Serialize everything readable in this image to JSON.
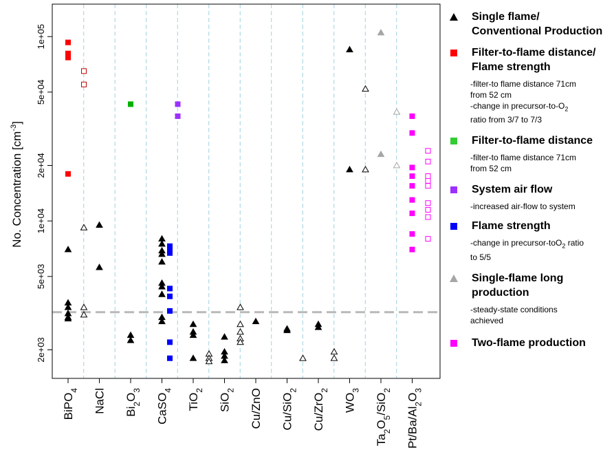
{
  "chart_data": {
    "type": "scatter",
    "title": "",
    "xlabel": "",
    "ylabel": "No. Concentration [cm",
    "ylabel_sup": "-3",
    "ylabel_close": "]",
    "y_scale": "log",
    "ylim": [
      1400,
      150000
    ],
    "grid": "vertical dashed lines between material groups",
    "reference_line": {
      "y": 3200,
      "style": "dashed gray"
    },
    "y_ticks": [
      {
        "value": 2000,
        "label": "2e+03"
      },
      {
        "value": 5000,
        "label": "5e+03"
      },
      {
        "value": 10000,
        "label": "1e+04"
      },
      {
        "value": 20000,
        "label": "2e+04"
      },
      {
        "value": 50000,
        "label": "5e+04"
      },
      {
        "value": 100000,
        "label": "1e+05"
      }
    ],
    "categories": [
      {
        "parts": [
          [
            "BiPO",
            ""
          ],
          [
            "4",
            "sub"
          ]
        ]
      },
      {
        "parts": [
          [
            "NaCl",
            ""
          ]
        ]
      },
      {
        "parts": [
          [
            "Bi",
            ""
          ],
          [
            "2",
            "sub"
          ],
          [
            "O",
            ""
          ],
          [
            "3",
            "sub"
          ]
        ]
      },
      {
        "parts": [
          [
            "CaSO",
            ""
          ],
          [
            "4",
            "sub"
          ]
        ]
      },
      {
        "parts": [
          [
            "TiO",
            ""
          ],
          [
            "2",
            "sub"
          ]
        ]
      },
      {
        "parts": [
          [
            "SiO",
            ""
          ],
          [
            "2",
            "sub"
          ]
        ]
      },
      {
        "parts": [
          [
            "Cu/ZnO",
            ""
          ]
        ]
      },
      {
        "parts": [
          [
            "Cu/SiO",
            ""
          ],
          [
            "2",
            "sub"
          ]
        ]
      },
      {
        "parts": [
          [
            "Cu/ZrO",
            ""
          ],
          [
            "2",
            "sub"
          ]
        ]
      },
      {
        "parts": [
          [
            "WO",
            ""
          ],
          [
            "3",
            "sub"
          ]
        ]
      },
      {
        "parts": [
          [
            "Ta",
            ""
          ],
          [
            "2",
            "sub"
          ],
          [
            "O",
            ""
          ],
          [
            "5",
            "sub"
          ],
          [
            "/SiO",
            ""
          ],
          [
            "2",
            "sub"
          ]
        ]
      },
      {
        "parts": [
          [
            "Pt/Ba/Al",
            ""
          ],
          [
            "2",
            "sub"
          ],
          [
            "O",
            ""
          ],
          [
            "3",
            "sub"
          ]
        ]
      }
    ],
    "series": [
      {
        "marker": "triangle",
        "color": "#000000",
        "points": [
          {
            "cat": 0,
            "x_offset": 0.0,
            "filled": true,
            "y": 7000
          },
          {
            "cat": 0,
            "x_offset": 0.0,
            "filled": true,
            "y": 3600
          },
          {
            "cat": 0,
            "x_offset": 0.0,
            "filled": true,
            "y": 3400
          },
          {
            "cat": 0,
            "x_offset": 0.0,
            "filled": true,
            "y": 3150
          },
          {
            "cat": 0,
            "x_offset": 0.0,
            "filled": true,
            "y": 3000
          },
          {
            "cat": 0,
            "x_offset": 0.0,
            "filled": true,
            "y": 2950
          },
          {
            "cat": 0,
            "x_offset": 0.5,
            "filled": false,
            "y": 9200
          },
          {
            "cat": 0,
            "x_offset": 0.5,
            "filled": false,
            "y": 3400
          },
          {
            "cat": 0,
            "x_offset": 0.5,
            "filled": false,
            "y": 3100
          },
          {
            "cat": 1,
            "x_offset": 0.0,
            "filled": true,
            "y": 9500
          },
          {
            "cat": 1,
            "x_offset": 0.0,
            "filled": true,
            "y": 5600
          },
          {
            "cat": 2,
            "x_offset": 0.0,
            "filled": true,
            "y": 2400
          },
          {
            "cat": 2,
            "x_offset": 0.0,
            "filled": true,
            "y": 2250
          },
          {
            "cat": 3,
            "x_offset": 0.0,
            "filled": true,
            "y": 8000
          },
          {
            "cat": 3,
            "x_offset": 0.0,
            "filled": true,
            "y": 7500
          },
          {
            "cat": 3,
            "x_offset": 0.0,
            "filled": true,
            "y": 6900
          },
          {
            "cat": 3,
            "x_offset": 0.0,
            "filled": true,
            "y": 6600
          },
          {
            "cat": 3,
            "x_offset": 0.0,
            "filled": true,
            "y": 6000
          },
          {
            "cat": 3,
            "x_offset": 0.0,
            "filled": true,
            "y": 4600
          },
          {
            "cat": 3,
            "x_offset": 0.0,
            "filled": true,
            "y": 4400
          },
          {
            "cat": 3,
            "x_offset": 0.0,
            "filled": true,
            "y": 4000
          },
          {
            "cat": 3,
            "x_offset": 0.0,
            "filled": true,
            "y": 3000
          },
          {
            "cat": 3,
            "x_offset": 0.0,
            "filled": true,
            "y": 2850
          },
          {
            "cat": 4,
            "x_offset": 0.0,
            "filled": true,
            "y": 2750
          },
          {
            "cat": 4,
            "x_offset": 0.0,
            "filled": true,
            "y": 2500
          },
          {
            "cat": 4,
            "x_offset": 0.0,
            "filled": true,
            "y": 2400
          },
          {
            "cat": 4,
            "x_offset": 0.0,
            "filled": true,
            "y": 1800
          },
          {
            "cat": 4,
            "x_offset": 0.5,
            "filled": false,
            "y": 1900
          },
          {
            "cat": 4,
            "x_offset": 0.5,
            "filled": false,
            "y": 1800
          },
          {
            "cat": 4,
            "x_offset": 0.5,
            "filled": false,
            "y": 1730
          },
          {
            "cat": 5,
            "x_offset": 0.0,
            "filled": true,
            "y": 2350
          },
          {
            "cat": 5,
            "x_offset": 0.0,
            "filled": true,
            "y": 1950
          },
          {
            "cat": 5,
            "x_offset": 0.0,
            "filled": true,
            "y": 1850
          },
          {
            "cat": 5,
            "x_offset": 0.0,
            "filled": true,
            "y": 1750
          },
          {
            "cat": 5,
            "x_offset": 0.5,
            "filled": false,
            "y": 3400
          },
          {
            "cat": 5,
            "x_offset": 0.5,
            "filled": false,
            "y": 2750
          },
          {
            "cat": 5,
            "x_offset": 0.5,
            "filled": false,
            "y": 2500
          },
          {
            "cat": 5,
            "x_offset": 0.5,
            "filled": false,
            "y": 2300
          },
          {
            "cat": 5,
            "x_offset": 0.5,
            "filled": false,
            "y": 2200
          },
          {
            "cat": 6,
            "x_offset": 0.0,
            "filled": true,
            "y": 2850
          },
          {
            "cat": 7,
            "x_offset": 0.0,
            "filled": true,
            "y": 2600
          },
          {
            "cat": 7,
            "x_offset": 0.0,
            "filled": true,
            "y": 2550
          },
          {
            "cat": 7,
            "x_offset": 0.5,
            "filled": false,
            "y": 1800
          },
          {
            "cat": 8,
            "x_offset": 0.0,
            "filled": true,
            "y": 2750
          },
          {
            "cat": 8,
            "x_offset": 0.0,
            "filled": true,
            "y": 2650
          },
          {
            "cat": 8,
            "x_offset": 0.5,
            "filled": false,
            "y": 1950
          },
          {
            "cat": 8,
            "x_offset": 0.5,
            "filled": false,
            "y": 1800
          },
          {
            "cat": 9,
            "x_offset": 0.0,
            "filled": true,
            "y": 85000
          },
          {
            "cat": 9,
            "x_offset": 0.0,
            "filled": true,
            "y": 19000
          },
          {
            "cat": 9,
            "x_offset": 0.5,
            "filled": false,
            "y": 52000
          },
          {
            "cat": 9,
            "x_offset": 0.5,
            "filled": false,
            "y": 19000
          }
        ]
      },
      {
        "marker": "square",
        "color": "#ff0000",
        "points": [
          {
            "cat": 0,
            "x_offset": 0.0,
            "filled": true,
            "y": 93000
          },
          {
            "cat": 0,
            "x_offset": 0.0,
            "filled": true,
            "y": 81000
          },
          {
            "cat": 0,
            "x_offset": 0.0,
            "filled": true,
            "y": 77000
          },
          {
            "cat": 0,
            "x_offset": 0.0,
            "filled": true,
            "y": 18000
          },
          {
            "cat": 0,
            "x_offset": 0.5,
            "filled": false,
            "y": 65000,
            "color": "#c00000"
          },
          {
            "cat": 0,
            "x_offset": 0.5,
            "filled": false,
            "y": 55000,
            "color": "#c00000"
          }
        ]
      },
      {
        "marker": "square",
        "color": "#00b000",
        "points": [
          {
            "cat": 2,
            "x_offset": 0.0,
            "filled": true,
            "y": 43000
          }
        ]
      },
      {
        "marker": "square",
        "color": "#9b30ff",
        "points": [
          {
            "cat": 3,
            "x_offset": 0.5,
            "filled": true,
            "y": 43000
          },
          {
            "cat": 3,
            "x_offset": 0.5,
            "filled": true,
            "y": 37000
          }
        ]
      },
      {
        "marker": "square",
        "color": "#0000ff",
        "points": [
          {
            "cat": 3,
            "x_offset": 0.25,
            "filled": true,
            "y": 7300
          },
          {
            "cat": 3,
            "x_offset": 0.25,
            "filled": true,
            "y": 7000
          },
          {
            "cat": 3,
            "x_offset": 0.25,
            "filled": true,
            "y": 6700
          },
          {
            "cat": 3,
            "x_offset": 0.25,
            "filled": true,
            "y": 4300
          },
          {
            "cat": 3,
            "x_offset": 0.25,
            "filled": true,
            "y": 3900
          },
          {
            "cat": 3,
            "x_offset": 0.25,
            "filled": true,
            "y": 3250
          },
          {
            "cat": 3,
            "x_offset": 0.25,
            "filled": true,
            "y": 2200
          },
          {
            "cat": 3,
            "x_offset": 0.25,
            "filled": true,
            "y": 1800
          }
        ]
      },
      {
        "marker": "triangle",
        "color": "#a6a6a6",
        "points": [
          {
            "cat": 10,
            "x_offset": 0.0,
            "filled": true,
            "y": 105000
          },
          {
            "cat": 10,
            "x_offset": 0.0,
            "filled": true,
            "y": 23000
          },
          {
            "cat": 10,
            "x_offset": 0.5,
            "filled": false,
            "y": 39000
          },
          {
            "cat": 10,
            "x_offset": 0.5,
            "filled": false,
            "y": 20000
          }
        ]
      },
      {
        "marker": "square",
        "color": "#ff00ff",
        "points": [
          {
            "cat": 11,
            "x_offset": 0.0,
            "filled": true,
            "y": 37000
          },
          {
            "cat": 11,
            "x_offset": 0.0,
            "filled": true,
            "y": 30000
          },
          {
            "cat": 11,
            "x_offset": 0.0,
            "filled": true,
            "y": 19500
          },
          {
            "cat": 11,
            "x_offset": 0.0,
            "filled": true,
            "y": 17500
          },
          {
            "cat": 11,
            "x_offset": 0.0,
            "filled": true,
            "y": 15500
          },
          {
            "cat": 11,
            "x_offset": 0.0,
            "filled": true,
            "y": 13000
          },
          {
            "cat": 11,
            "x_offset": 0.0,
            "filled": true,
            "y": 11000
          },
          {
            "cat": 11,
            "x_offset": 0.0,
            "filled": true,
            "y": 8500
          },
          {
            "cat": 11,
            "x_offset": 0.0,
            "filled": true,
            "y": 7000
          },
          {
            "cat": 11,
            "x_offset": 0.5,
            "filled": false,
            "y": 24000
          },
          {
            "cat": 11,
            "x_offset": 0.5,
            "filled": false,
            "y": 21000
          },
          {
            "cat": 11,
            "x_offset": 0.5,
            "filled": false,
            "y": 17500
          },
          {
            "cat": 11,
            "x_offset": 0.5,
            "filled": false,
            "y": 16500
          },
          {
            "cat": 11,
            "x_offset": 0.5,
            "filled": false,
            "y": 15500
          },
          {
            "cat": 11,
            "x_offset": 0.5,
            "filled": false,
            "y": 12500
          },
          {
            "cat": 11,
            "x_offset": 0.5,
            "filled": false,
            "y": 11500
          },
          {
            "cat": 11,
            "x_offset": 0.5,
            "filled": false,
            "y": 10500
          },
          {
            "cat": 11,
            "x_offset": 0.5,
            "filled": false,
            "y": 8000
          }
        ]
      }
    ],
    "legend": {
      "placement": "right",
      "items": [
        {
          "marker": "triangle",
          "color": "#000000",
          "lines": [
            "Single flame/",
            "Conventional Production"
          ],
          "notes": []
        },
        {
          "marker": "square",
          "color": "#ff0000",
          "lines": [
            "Filter-to-flame distance/",
            "Flame strength"
          ],
          "notes": [
            [
              [
                "-filter-to flame distance 71cm",
                ""
              ]
            ],
            [
              [
                " from 52 cm",
                ""
              ]
            ],
            [
              [
                "-change in precursor-to-O",
                ""
              ],
              [
                "2",
                "sub"
              ]
            ],
            [
              [
                " ratio from 3/7 to 7/3",
                ""
              ]
            ]
          ]
        },
        {
          "marker": "square",
          "color": "#33cc33",
          "lines": [
            "Filter-to-flame distance"
          ],
          "notes": [
            [
              [
                "-filter-to flame distance 71cm",
                ""
              ]
            ],
            [
              [
                " from 52 cm",
                ""
              ]
            ]
          ]
        },
        {
          "marker": "square",
          "color": "#9b30ff",
          "lines": [
            "System air flow"
          ],
          "notes": [
            [
              [
                "-increased air-flow to system",
                ""
              ]
            ]
          ]
        },
        {
          "marker": "square",
          "color": "#0000ff",
          "lines": [
            "Flame strength"
          ],
          "notes": [
            [
              [
                "-change in precursor-toO",
                ""
              ],
              [
                "2",
                "sub"
              ],
              [
                " ratio",
                ""
              ]
            ],
            [
              [
                "to 5/5",
                ""
              ]
            ]
          ]
        },
        {
          "marker": "triangle",
          "color": "#a6a6a6",
          "lines": [
            "Single-flame long",
            "production"
          ],
          "notes": [
            [
              [
                "-steady-state conditions",
                ""
              ]
            ],
            [
              [
                "achieved",
                ""
              ]
            ]
          ]
        },
        {
          "marker": "square",
          "color": "#ff00ff",
          "lines": [
            "Two-flame production"
          ],
          "notes": []
        }
      ]
    }
  }
}
